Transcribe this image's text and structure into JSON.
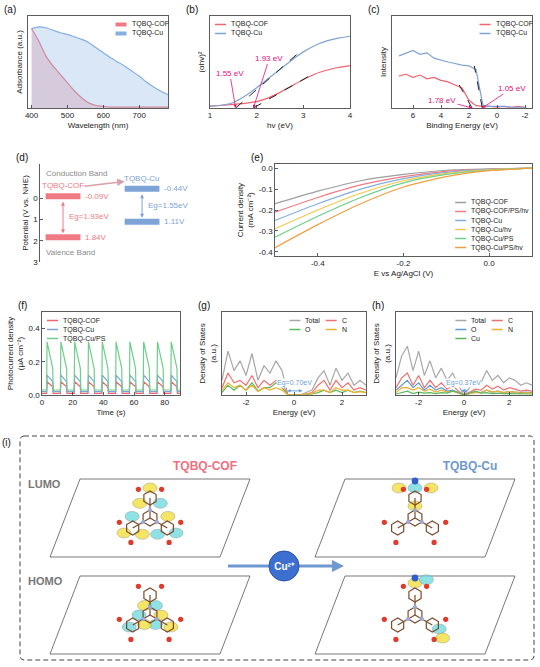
{
  "chart_data": [
    {
      "label": "(a)",
      "type": "area",
      "x_label": "Wavelength (nm)",
      "y_label": "Adsorbance (a.u.)",
      "x": [
        400,
        420,
        440,
        460,
        480,
        500,
        520,
        540,
        560,
        580,
        600,
        620,
        640,
        660,
        680,
        700,
        720,
        740,
        760,
        780
      ],
      "series": [
        {
          "name": "TQBQ-COF",
          "color": "#f07a84",
          "values": [
            0.95,
            0.8,
            0.62,
            0.5,
            0.4,
            0.3,
            0.2,
            0.12,
            0.06,
            0.03,
            0.02,
            0.01,
            0.01,
            0.01,
            0.01,
            0.01,
            0.01,
            0.01,
            0.01,
            0.01
          ]
        },
        {
          "name": "TQBQ-Cu",
          "color": "#86aee0",
          "values": [
            0.95,
            0.97,
            0.96,
            0.93,
            0.9,
            0.88,
            0.85,
            0.82,
            0.78,
            0.72,
            0.66,
            0.6,
            0.55,
            0.5,
            0.44,
            0.38,
            0.31,
            0.25,
            0.2,
            0.16
          ]
        }
      ],
      "xlim": [
        390,
        780
      ],
      "xticks": [
        400,
        500,
        600,
        700
      ],
      "ylim": [
        0,
        1.1
      ],
      "tick_labels": "x",
      "legend": "top right",
      "grid": false,
      "line_style": "smooth"
    },
    {
      "label": "(b)",
      "type": "line",
      "x_label": "hv (eV)",
      "y_label": "(αhv)²",
      "x": [
        1,
        1.25,
        1.5,
        1.75,
        2,
        2.25,
        2.5,
        2.75,
        3,
        3.25,
        3.5,
        3.75,
        4
      ],
      "series": [
        {
          "name": "TQBQ-COF",
          "color": "#f0646e",
          "values": [
            0.02,
            0.03,
            0.04,
            0.05,
            0.07,
            0.11,
            0.17,
            0.24,
            0.31,
            0.37,
            0.41,
            0.44,
            0.46
          ]
        },
        {
          "name": "TQBQ-Cu",
          "color": "#7ea3d6",
          "values": [
            0.02,
            0.03,
            0.06,
            0.13,
            0.22,
            0.32,
            0.42,
            0.52,
            0.61,
            0.68,
            0.73,
            0.76,
            0.78
          ]
        }
      ],
      "fits": [
        {
          "x": [
            1.55,
            2.9
          ],
          "y": [
            0,
            0.6
          ],
          "color": "#222222",
          "line_style": "dashed"
        },
        {
          "x": [
            1.93,
            3.1
          ],
          "y": [
            0,
            0.34
          ],
          "color": "#222222",
          "line_style": "dashed"
        }
      ],
      "annotations": [
        {
          "text": "1.55 eV",
          "x": 1.55,
          "y": 0,
          "color": "#e0107a"
        },
        {
          "text": "1.93 eV",
          "x": 1.93,
          "y": 0,
          "color": "#e0107a"
        }
      ],
      "xlim": [
        1,
        4
      ],
      "xticks": [
        1,
        2,
        3,
        4
      ],
      "ylim": [
        0,
        1
      ],
      "tick_labels": "x",
      "legend": "top left",
      "grid": false,
      "line_style": "smooth"
    },
    {
      "label": "(c)",
      "type": "line",
      "x_label": "Binding Energy (eV)",
      "y_label": "Intensity",
      "x": [
        7,
        6.5,
        6,
        5.5,
        5,
        4.5,
        4,
        3.5,
        3,
        2.5,
        2,
        1.5,
        1,
        0.5,
        0,
        -0.5,
        -1,
        -1.5,
        -2
      ],
      "series": [
        {
          "name": "TQBQ-COF",
          "color": "#f0646e",
          "values": [
            0.42,
            0.44,
            0.4,
            0.43,
            0.38,
            0.4,
            0.36,
            0.34,
            0.3,
            0.26,
            0.1,
            0.03,
            0.02,
            0.02,
            0.01,
            0.02,
            0.01,
            0.02,
            0.01
          ]
        },
        {
          "name": "TQBQ-Cu",
          "color": "#7ea3d6",
          "values": [
            0.68,
            0.72,
            0.75,
            0.7,
            0.72,
            0.65,
            0.62,
            0.6,
            0.58,
            0.56,
            0.55,
            0.5,
            0.03,
            0.02,
            0.02,
            0.02,
            0.01,
            0.01,
            0.01
          ]
        }
      ],
      "fits": [
        {
          "x": [
            1.78,
            2.7
          ],
          "y": [
            0,
            0.3
          ],
          "color": "#222222",
          "line_style": "dashed"
        },
        {
          "x": [
            1.05,
            1.62
          ],
          "y": [
            0,
            0.55
          ],
          "color": "#222222",
          "line_style": "dashed"
        }
      ],
      "annotations": [
        {
          "text": "1.78 eV",
          "x": 1.78,
          "y": 0,
          "color": "#e0107a"
        },
        {
          "text": "1.05 eV",
          "x": 1.05,
          "y": 0,
          "color": "#e0107a"
        }
      ],
      "xlim": [
        7.5,
        -2.5
      ],
      "xticks": [
        6,
        4,
        2,
        0,
        -2
      ],
      "ylim": [
        0,
        1.2
      ],
      "tick_labels": "x",
      "legend": "top right",
      "grid": false,
      "line_style": "solid"
    },
    {
      "label": "(d)",
      "type": "band",
      "y_label": "Potential (V vs. NHE)",
      "texts": [
        "Conduction Band",
        "Valence Band"
      ],
      "series": [
        {
          "name": "TQBQ-COF",
          "color": "#f07a84",
          "values": [
            -0.09,
            1.84
          ],
          "value_labels": [
            "-0.09V",
            "1.84V"
          ],
          "gap_label": "Eg=1.93eV"
        },
        {
          "name": "TQBQ-Cu",
          "color": "#7ea3d6",
          "values": [
            -0.44,
            1.11
          ],
          "value_labels": [
            "-0.44V",
            "1.11V"
          ],
          "gap_label": "Eg=1.55eV"
        }
      ],
      "ylim": [
        3,
        -1.6
      ],
      "yticks": [
        0,
        1,
        2,
        3
      ],
      "tick_labels": "y",
      "grid": false
    },
    {
      "label": "(e)",
      "type": "line",
      "x_label": "E vs Ag/AgCl (V)",
      "y_label": "Current density (mA cm⁻²)",
      "x": [
        0.1,
        0,
        -0.1,
        -0.2,
        -0.3,
        -0.4,
        -0.5
      ],
      "series": [
        {
          "name": "TQBQ-COF",
          "color": "#9e9e9e",
          "values": [
            0,
            -0.003,
            -0.01,
            -0.03,
            -0.06,
            -0.11,
            -0.17
          ]
        },
        {
          "name": "TQBQ-COF/PS/hv",
          "color": "#f07a84",
          "values": [
            0,
            -0.005,
            -0.015,
            -0.04,
            -0.08,
            -0.14,
            -0.21
          ]
        },
        {
          "name": "TQBQ-Cu",
          "color": "#86aee0",
          "values": [
            0,
            -0.006,
            -0.02,
            -0.05,
            -0.1,
            -0.17,
            -0.25
          ]
        },
        {
          "name": "TQBQ-Cu/hv",
          "color": "#f2c94c",
          "values": [
            0,
            -0.008,
            -0.025,
            -0.06,
            -0.12,
            -0.2,
            -0.29
          ]
        },
        {
          "name": "TQBQ-Cu/PS",
          "color": "#6fcf8a",
          "values": [
            0,
            -0.01,
            -0.03,
            -0.07,
            -0.14,
            -0.23,
            -0.33
          ]
        },
        {
          "name": "TQBQ-Cu/PS/hv",
          "color": "#f0a040",
          "values": [
            0,
            -0.012,
            -0.04,
            -0.09,
            -0.17,
            -0.27,
            -0.38
          ]
        }
      ],
      "xlim": [
        -0.5,
        0.1
      ],
      "xticks": [
        -0.4,
        -0.2,
        {
          "value": 0,
          "label": "0.0"
        }
      ],
      "ylim": [
        -0.42,
        0.02
      ],
      "yticks": [
        {
          "value": 0,
          "label": "0.0"
        },
        -0.1,
        -0.2,
        -0.3,
        -0.4
      ],
      "legend": "bottom right",
      "grid": false,
      "line_style": "smooth"
    },
    {
      "label": "(f)",
      "type": "line",
      "x_label": "Time (s)",
      "y_label": "Photocurrent density (μA cm⁻²)",
      "x": [
        0,
        3,
        3.3,
        7,
        7.3,
        12,
        12.3,
        16,
        16.3,
        21,
        21.3,
        25,
        25.3,
        30,
        30.3,
        34,
        34.3,
        39,
        39.3,
        43,
        43.3,
        48,
        48.3,
        52,
        52.3,
        57,
        57.3,
        61,
        61.3,
        66,
        66.3,
        70,
        70.3,
        75,
        75.3,
        79,
        79.3,
        84,
        84.3,
        88,
        88.3,
        90
      ],
      "series": [
        {
          "name": "TQBQ-COF",
          "color": "#f0646e",
          "values": [
            0.01,
            0.01,
            0.08,
            0.05,
            0.01,
            0.01,
            0.08,
            0.05,
            0.01,
            0.01,
            0.08,
            0.05,
            0.01,
            0.01,
            0.08,
            0.05,
            0.01,
            0.01,
            0.08,
            0.05,
            0.01,
            0.01,
            0.08,
            0.05,
            0.01,
            0.01,
            0.08,
            0.05,
            0.01,
            0.01,
            0.08,
            0.05,
            0.01,
            0.01,
            0.08,
            0.05,
            0.01,
            0.01,
            0.08,
            0.05,
            0.01,
            0.01
          ]
        },
        {
          "name": "TQBQ-Cu",
          "color": "#7ea3d6",
          "values": [
            0.02,
            0.02,
            0.12,
            0.08,
            0.02,
            0.02,
            0.12,
            0.08,
            0.02,
            0.02,
            0.12,
            0.08,
            0.02,
            0.02,
            0.12,
            0.08,
            0.02,
            0.02,
            0.12,
            0.08,
            0.02,
            0.02,
            0.12,
            0.08,
            0.02,
            0.02,
            0.12,
            0.08,
            0.02,
            0.02,
            0.12,
            0.08,
            0.02,
            0.02,
            0.12,
            0.08,
            0.02,
            0.02,
            0.12,
            0.08,
            0.02,
            0.02
          ]
        },
        {
          "name": "TQBQ-Cu/PS",
          "color": "#6fcf8a",
          "values": [
            0.03,
            0.03,
            0.32,
            0.16,
            0.03,
            0.03,
            0.32,
            0.16,
            0.03,
            0.03,
            0.32,
            0.16,
            0.03,
            0.03,
            0.32,
            0.16,
            0.03,
            0.03,
            0.32,
            0.16,
            0.03,
            0.03,
            0.32,
            0.16,
            0.03,
            0.03,
            0.32,
            0.16,
            0.03,
            0.03,
            0.32,
            0.16,
            0.03,
            0.03,
            0.32,
            0.16,
            0.03,
            0.03,
            0.32,
            0.16,
            0.03,
            0.03
          ]
        }
      ],
      "xlim": [
        0,
        90
      ],
      "xticks": [
        0,
        20,
        40,
        60,
        80
      ],
      "ylim": [
        0,
        0.5
      ],
      "yticks": [
        {
          "value": 0,
          "label": "0.0"
        },
        0.2,
        0.4
      ],
      "legend": "top left",
      "grid": false,
      "line_style": "solid"
    },
    {
      "label": "(g)",
      "type": "line",
      "x_label": "Energy (eV)",
      "y_label": "Density of States (a.u.)",
      "x": [
        -3,
        -2.75,
        -2.5,
        -2.25,
        -2,
        -1.75,
        -1.5,
        -1.25,
        -1,
        -0.75,
        -0.5,
        -0.25,
        0,
        0.25,
        0.5,
        0.75,
        1,
        1.25,
        1.5,
        1.75,
        2,
        2.25,
        2.5,
        2.75,
        3
      ],
      "series": [
        {
          "name": "Total",
          "color": "#a8a8a8",
          "values": [
            0.3,
            0.9,
            0.5,
            0.7,
            0.4,
            0.85,
            0.3,
            0.6,
            0.45,
            0.7,
            0.5,
            0,
            0,
            0,
            0.05,
            0.1,
            0.35,
            0.5,
            0.2,
            0.55,
            0.3,
            0.45,
            0.2,
            0.3,
            0.2
          ]
        },
        {
          "name": "C",
          "color": "#f07070",
          "values": [
            0.15,
            0.45,
            0.25,
            0.3,
            0.2,
            0.4,
            0.15,
            0.3,
            0.2,
            0.3,
            0.25,
            0,
            0,
            0,
            0.02,
            0.05,
            0.2,
            0.3,
            0.1,
            0.3,
            0.15,
            0.25,
            0.1,
            0.15,
            0.1
          ]
        },
        {
          "name": "O",
          "color": "#5cb85c",
          "values": [
            0.05,
            0.2,
            0.1,
            0.2,
            0.1,
            0.25,
            0.08,
            0.15,
            0.15,
            0.25,
            0.15,
            0,
            0,
            0,
            0.01,
            0.02,
            0.05,
            0.1,
            0.05,
            0.1,
            0.05,
            0.1,
            0.05,
            0.08,
            0.05
          ]
        },
        {
          "name": "N",
          "color": "#f0b030",
          "values": [
            0.1,
            0.25,
            0.15,
            0.2,
            0.1,
            0.2,
            0.07,
            0.15,
            0.1,
            0.15,
            0.1,
            0,
            0,
            0,
            0.02,
            0.03,
            0.1,
            0.1,
            0.05,
            0.15,
            0.1,
            0.1,
            0.05,
            0.07,
            0.05
          ]
        }
      ],
      "gap": [
        -0.35,
        0.35
      ],
      "gap_label": "Eg=0.70eV",
      "gap_color": "#6aa0d8",
      "xlim": [
        -3,
        3
      ],
      "xticks": [
        -2,
        0,
        2
      ],
      "ylim": [
        0,
        1.7
      ],
      "tick_labels": "x",
      "legend": "top right",
      "grid": false,
      "line_style": "solid"
    },
    {
      "label": "(h)",
      "type": "line",
      "x_label": "Energy (eV)",
      "y_label": "Density of States (a.u.)",
      "x": [
        -3,
        -2.75,
        -2.5,
        -2.25,
        -2,
        -1.75,
        -1.5,
        -1.25,
        -1,
        -0.75,
        -0.5,
        -0.25,
        0,
        0.25,
        0.5,
        0.75,
        1,
        1.25,
        1.5,
        1.75,
        2,
        2.25,
        2.5,
        2.75,
        3
      ],
      "series": [
        {
          "name": "Total",
          "color": "#a8a8a8",
          "values": [
            0.35,
            0.8,
            1.0,
            0.5,
            0.9,
            0.4,
            0.7,
            0.35,
            0.55,
            0.3,
            0.45,
            0.2,
            0,
            0.15,
            0.3,
            0.25,
            0.5,
            0.3,
            0.4,
            0.25,
            0.35,
            0.3,
            0.2,
            0.25,
            0.2
          ]
        },
        {
          "name": "C",
          "color": "#f07070",
          "values": [
            0.15,
            0.35,
            0.45,
            0.2,
            0.4,
            0.15,
            0.3,
            0.15,
            0.25,
            0.12,
            0.2,
            0.08,
            0,
            0.06,
            0.12,
            0.1,
            0.2,
            0.12,
            0.18,
            0.1,
            0.15,
            0.12,
            0.08,
            0.1,
            0.08
          ]
        },
        {
          "name": "O",
          "color": "#5b9bd5",
          "values": [
            0.1,
            0.2,
            0.3,
            0.15,
            0.25,
            0.1,
            0.2,
            0.1,
            0.15,
            0.08,
            0.1,
            0.05,
            0,
            0.03,
            0.06,
            0.05,
            0.1,
            0.06,
            0.08,
            0.05,
            0.07,
            0.06,
            0.05,
            0.06,
            0.05
          ]
        },
        {
          "name": "N",
          "color": "#f0b030",
          "values": [
            0.05,
            0.15,
            0.15,
            0.1,
            0.15,
            0.08,
            0.12,
            0.06,
            0.1,
            0.06,
            0.08,
            0.04,
            0,
            0.03,
            0.05,
            0.05,
            0.1,
            0.06,
            0.08,
            0.05,
            0.07,
            0.06,
            0.04,
            0.05,
            0.04
          ]
        },
        {
          "name": "Cu",
          "color": "#5cb85c",
          "values": [
            0.02,
            0.05,
            0.08,
            0.03,
            0.06,
            0.04,
            0.05,
            0.03,
            0.05,
            0.04,
            0.08,
            0.05,
            0,
            0.04,
            0.08,
            0.04,
            0.05,
            0.03,
            0.04,
            0.03,
            0.03,
            0.03,
            0.02,
            0.03,
            0.02
          ]
        }
      ],
      "gap": [
        -0.2,
        0.17
      ],
      "gap_label": "Eg=0.37eV",
      "gap_color": "#6aa0d8",
      "xlim": [
        -3,
        3
      ],
      "xticks": [
        -2,
        0,
        2
      ],
      "ylim": [
        0,
        1.7
      ],
      "tick_labels": "x",
      "legend": "top right",
      "grid": false,
      "line_style": "solid"
    }
  ],
  "diagram": {
    "label": "(i)",
    "rows": [
      "LUMO",
      "HOMO"
    ],
    "columns": [
      {
        "title": "TQBQ-COF",
        "color": "#f07080"
      },
      {
        "title": "TQBQ-Cu",
        "color": "#6f98d0"
      }
    ],
    "ion": "Cu²⁺"
  }
}
